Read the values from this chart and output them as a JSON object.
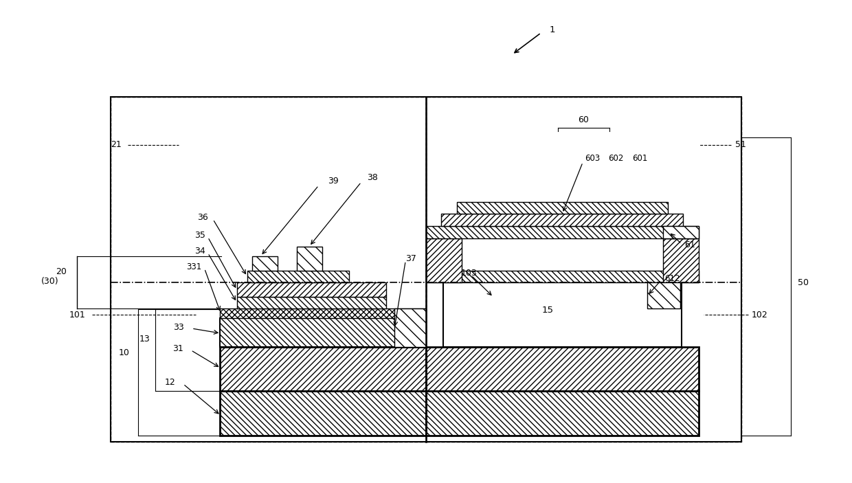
{
  "bg_color": "#ffffff",
  "figsize": [
    12.4,
    7.03
  ],
  "dpi": 100
}
